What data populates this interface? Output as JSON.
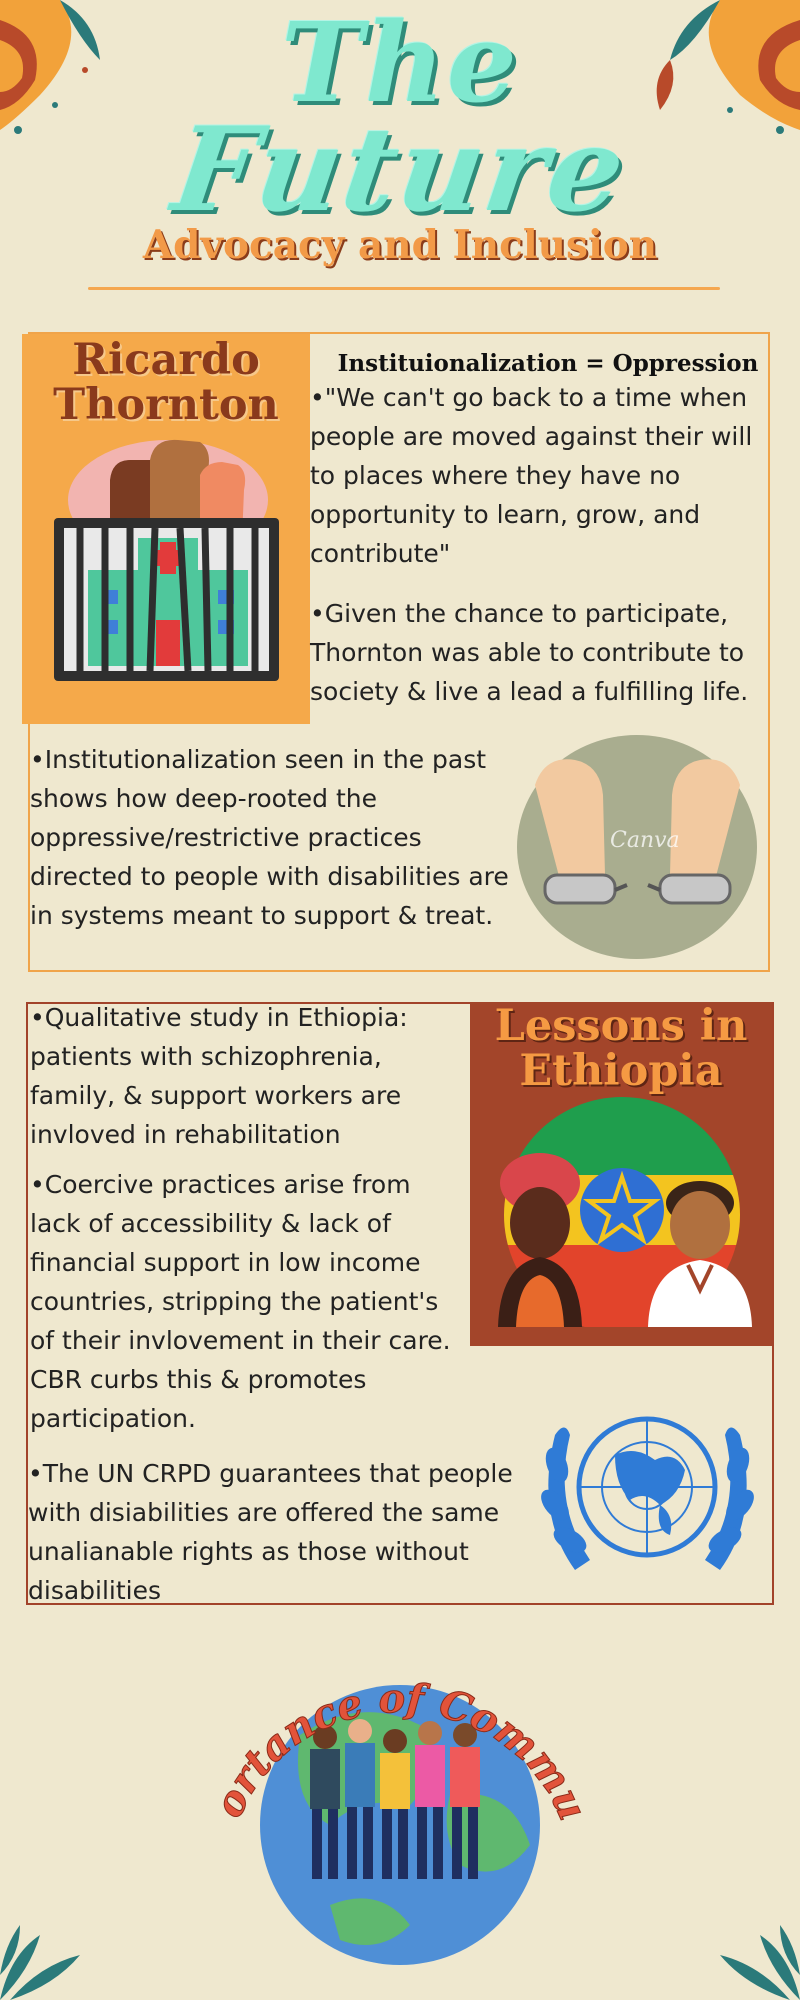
{
  "header": {
    "title_line1": "The",
    "title_line2": "Future",
    "subtitle": "Advocacy and Inclusion"
  },
  "section1": {
    "panel_title_line1": "Ricardo",
    "panel_title_line2": "Thornton",
    "heading": "Instituionalization = Oppression",
    "bullets": [
      "•\"We can't go back to a time when people are moved against their will to places where they have no opportunity to learn, grow, and contribute\"",
      "•Given the chance to participate, Thornton was able to contribute to society & live a lead a fulfilling life.",
      "•Institutionalization seen in the past shows how deep-rooted the oppressive/restrictive practices directed to people with disabilities are in systems meant to support & treat."
    ]
  },
  "section2": {
    "panel_title_line1": "Lessons in",
    "panel_title_line2": "Ethiopia",
    "bullets": [
      "•Qualitative study in Ethiopia: patients with schizophrenia, family, & support workers are invloved in rehabilitation",
      "•Coercive practices arise from lack of accessibility & lack of financial support in low income countries, stripping the patient's of their invlovement in their care. CBR curbs this & promotes participation.",
      "•The UN CRPD guarantees that people with disiabilities are offered the same unalianable rights as those without disabilities"
    ]
  },
  "community": {
    "title": "Importance of Community"
  },
  "watermark": "Canva",
  "colors": {
    "background": "#efe8cf",
    "title_mint": "#7fe8cf",
    "orange": "#f5a94a",
    "rust": "#a3452a",
    "un_blue": "#2f7bd6"
  }
}
